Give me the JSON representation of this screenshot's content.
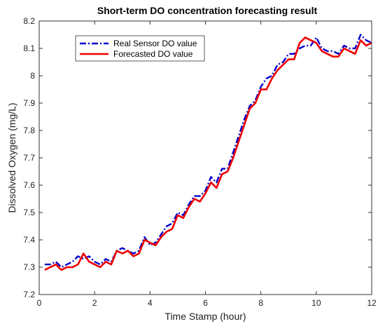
{
  "chart_data": {
    "type": "line",
    "title": "Short-term DO concentration forecasting result",
    "xlabel": "Time Stamp (hour)",
    "ylabel": "Dissolved Oxygen (mg/L)",
    "xlim": [
      0,
      12
    ],
    "ylim": [
      7.2,
      8.2
    ],
    "xticks": [
      "0",
      "2",
      "4",
      "6",
      "8",
      "10",
      "12"
    ],
    "yticks": [
      "7.2",
      "7.3",
      "7.4",
      "7.5",
      "7.6",
      "7.7",
      "7.8",
      "7.9",
      "8",
      "8.1",
      "8.2"
    ],
    "grid": false,
    "legend_position": "top-left",
    "series": [
      {
        "name": "Real Sensor DO value",
        "color": "#0000cc",
        "style": "dash-dot",
        "x": [
          0.2,
          0.4,
          0.6,
          0.8,
          1.0,
          1.2,
          1.4,
          1.6,
          1.8,
          2.0,
          2.2,
          2.4,
          2.6,
          2.8,
          3.0,
          3.2,
          3.4,
          3.6,
          3.8,
          4.0,
          4.2,
          4.4,
          4.6,
          4.8,
          5.0,
          5.2,
          5.4,
          5.6,
          5.8,
          6.0,
          6.2,
          6.4,
          6.6,
          6.8,
          7.0,
          7.2,
          7.4,
          7.6,
          7.8,
          8.0,
          8.2,
          8.4,
          8.6,
          8.8,
          9.0,
          9.2,
          9.4,
          9.6,
          9.8,
          10.0,
          10.2,
          10.4,
          10.6,
          10.8,
          11.0,
          11.2,
          11.4,
          11.6,
          11.8,
          12.0
        ],
        "y": [
          7.31,
          7.31,
          7.32,
          7.3,
          7.31,
          7.32,
          7.34,
          7.33,
          7.34,
          7.32,
          7.31,
          7.33,
          7.32,
          7.36,
          7.37,
          7.36,
          7.35,
          7.36,
          7.41,
          7.38,
          7.39,
          7.42,
          7.45,
          7.46,
          7.5,
          7.49,
          7.53,
          7.56,
          7.56,
          7.58,
          7.63,
          7.61,
          7.66,
          7.66,
          7.72,
          7.78,
          7.84,
          7.89,
          7.91,
          7.96,
          7.99,
          8.0,
          8.04,
          8.05,
          8.08,
          8.08,
          8.1,
          8.11,
          8.11,
          8.14,
          8.1,
          8.09,
          8.09,
          8.08,
          8.11,
          8.1,
          8.1,
          8.15,
          8.13,
          8.12
        ]
      },
      {
        "name": "Forecasted DO value",
        "color": "#ee0000",
        "style": "solid",
        "x": [
          0.2,
          0.4,
          0.6,
          0.8,
          1.0,
          1.2,
          1.4,
          1.6,
          1.8,
          2.0,
          2.2,
          2.4,
          2.6,
          2.8,
          3.0,
          3.2,
          3.4,
          3.6,
          3.8,
          4.0,
          4.2,
          4.4,
          4.6,
          4.8,
          5.0,
          5.2,
          5.4,
          5.6,
          5.8,
          6.0,
          6.2,
          6.4,
          6.6,
          6.8,
          7.0,
          7.2,
          7.4,
          7.6,
          7.8,
          8.0,
          8.2,
          8.4,
          8.6,
          8.8,
          9.0,
          9.2,
          9.4,
          9.6,
          9.8,
          10.0,
          10.2,
          10.4,
          10.6,
          10.8,
          11.0,
          11.2,
          11.4,
          11.6,
          11.8,
          12.0
        ],
        "y": [
          7.29,
          7.3,
          7.31,
          7.29,
          7.3,
          7.3,
          7.31,
          7.35,
          7.32,
          7.31,
          7.3,
          7.32,
          7.31,
          7.36,
          7.35,
          7.36,
          7.34,
          7.35,
          7.4,
          7.39,
          7.38,
          7.41,
          7.43,
          7.44,
          7.49,
          7.48,
          7.52,
          7.55,
          7.54,
          7.57,
          7.61,
          7.59,
          7.64,
          7.65,
          7.7,
          7.76,
          7.82,
          7.88,
          7.9,
          7.95,
          7.95,
          7.99,
          8.02,
          8.04,
          8.06,
          8.06,
          8.12,
          8.14,
          8.13,
          8.12,
          8.09,
          8.08,
          8.07,
          8.07,
          8.1,
          8.09,
          8.08,
          8.13,
          8.11,
          8.12
        ]
      }
    ]
  }
}
